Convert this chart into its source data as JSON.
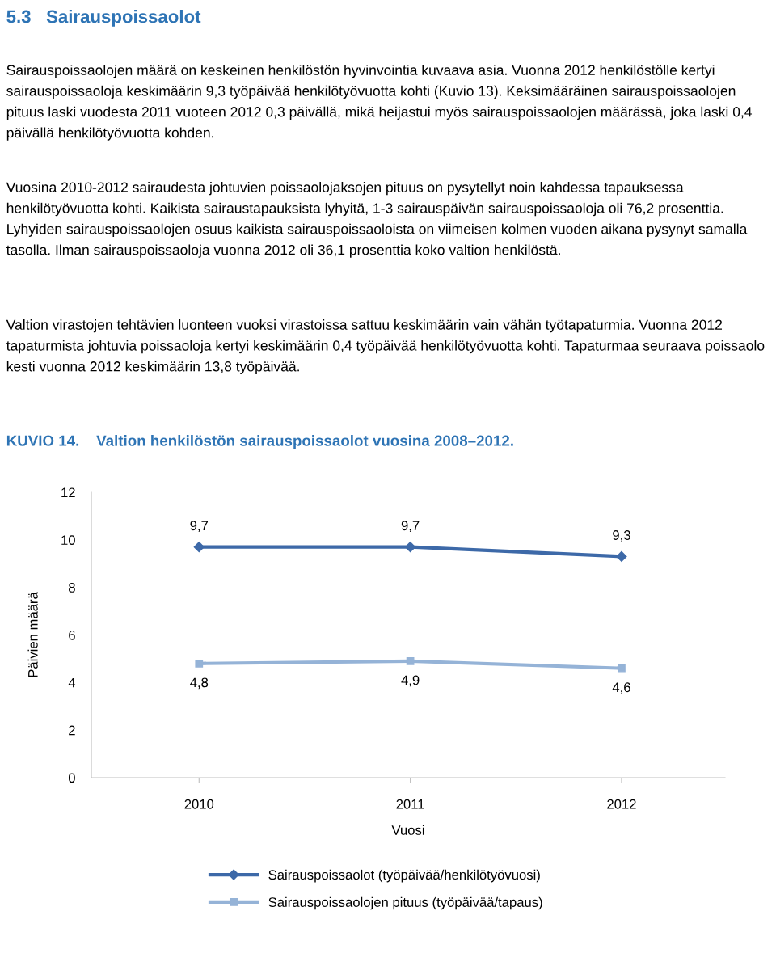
{
  "chart_data": {
    "type": "line",
    "title": "KUVIO 14.    Valtion henkilöstön sairauspoissaolot vuosina 2008–2012.",
    "annotations": [
      "5.3   Sairauspoissaolot",
      "Sairauspoissaolojen määrä on keskeinen henkilöstön hyvinvointia kuvaava asia. Vuonna 2012 henkilöstölle kertyi sairauspoissaoloja keskimäärin 9,3 työpäivää henkilötyövuotta kohti (Kuvio 13). Keksimääräinen sairauspoissaolojen pituus laski vuodesta 2011 vuoteen 2012 0,3 päivällä, mikä heijastui myös sairauspoissaolojen määrässä, joka laski 0,4 päivällä henkilötyövuotta kohden.",
      "Vuosina 2010-2012 sairaudesta johtuvien poissaolojaksojen pituus on pysytellyt noin kahdessa tapauksessa henkilötyövuotta kohti. Kaikista sairaustapauksista lyhyitä, 1-3 sairauspäivän sairauspoissaoloja oli 76,2 prosenttia. Lyhyiden sairauspoissaolojen osuus kaikista sairauspoissaoloista on viimeisen kolmen vuoden aikana pysynyt samalla tasolla. Ilman sairauspoissaoloja vuonna 2012 oli 36,1 prosenttia koko valtion henkilöstä.",
      "Valtion virastojen tehtävien luonteen vuoksi virastoissa sattuu keskimäärin vain vähän työtapaturmia. Vuonna 2012 tapaturmista johtuvia poissaoloja kertyi keskimäärin 0,4 työpäivää henkilötyövuotta kohti. Tapaturmaa seuraava poissaolo kesti vuonna 2012 keskimäärin 13,8 työpäivää."
    ],
    "xlabel": "Vuosi",
    "ylabel": "Päivien määrä",
    "categories": [
      "2010",
      "2011",
      "2012"
    ],
    "ylim": [
      0,
      12
    ],
    "yticks": [
      0,
      2,
      4,
      6,
      8,
      10,
      12
    ],
    "grid": false,
    "legend": "bottom",
    "series": [
      {
        "name": "Sairauspoissaolot (työpäivää/henkilötyövuosi)",
        "color": "#3d69a8",
        "marker": "diamond",
        "values": [
          9.7,
          9.7,
          9.3
        ],
        "value_labels": [
          "9,7",
          "9,7",
          "9,3"
        ]
      },
      {
        "name": "Sairauspoissaolojen pituus (työpäivää/tapaus)",
        "color": "#95b3d7",
        "marker": "square",
        "values": [
          4.8,
          4.9,
          4.6
        ],
        "value_labels": [
          "4,8",
          "4,9",
          "4,6"
        ]
      }
    ]
  }
}
